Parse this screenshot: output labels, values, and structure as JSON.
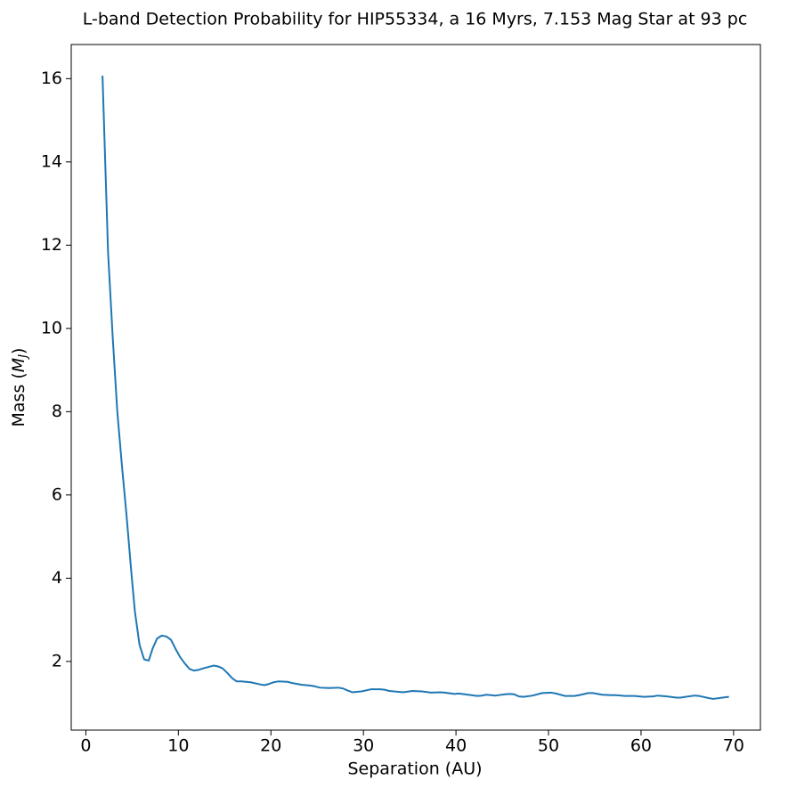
{
  "chart_data": {
    "type": "line",
    "title": "L-band Detection Probability for HIP55334, a 16 Myrs, 7.153 Mag Star at 93 pc",
    "xlabel": "Separation (AU)",
    "ylabel": [
      "Mass (",
      "M",
      "J",
      ")"
    ],
    "x": [
      1.8,
      2.4,
      2.9,
      3.4,
      3.9,
      4.4,
      4.9,
      5.3,
      5.8,
      6.3,
      6.8,
      7.2,
      7.7,
      8.2,
      8.7,
      9.2,
      9.7,
      10.2,
      10.7,
      11.2,
      11.7,
      12.2,
      12.8,
      13.3,
      13.8,
      14.3,
      14.8,
      15.3,
      15.8,
      16.3,
      16.8,
      17.8,
      18.8,
      19.3,
      19.8,
      20.3,
      20.8,
      21.8,
      22.3,
      23.3,
      24.3,
      24.8,
      25.3,
      26.3,
      27.3,
      27.8,
      28.3,
      28.8,
      29.8,
      30.8,
      31.8,
      32.3,
      32.8,
      33.8,
      34.3,
      35.3,
      36.3,
      37.3,
      38.3,
      38.8,
      39.8,
      40.3,
      41.3,
      42.3,
      42.8,
      43.3,
      44.3,
      45.3,
      45.8,
      46.3,
      46.8,
      47.3,
      48.3,
      49.3,
      50.3,
      50.8,
      51.8,
      52.8,
      53.3,
      54.3,
      54.8,
      55.8,
      56.8,
      57.3,
      58.3,
      59.3,
      60.3,
      61.3,
      61.8,
      62.8,
      63.8,
      64.3,
      64.8,
      65.8,
      66.3,
      67.3,
      67.8,
      68.8,
      69.5
    ],
    "series": [
      {
        "color": "#1f77b4",
        "values": [
          16.07,
          11.83,
          9.8,
          8.0,
          6.7,
          5.5,
          4.18,
          3.2,
          2.4,
          2.05,
          2.02,
          2.3,
          2.55,
          2.62,
          2.6,
          2.52,
          2.3,
          2.1,
          1.95,
          1.82,
          1.78,
          1.8,
          1.84,
          1.87,
          1.9,
          1.88,
          1.83,
          1.72,
          1.6,
          1.52,
          1.52,
          1.5,
          1.45,
          1.43,
          1.46,
          1.5,
          1.52,
          1.51,
          1.48,
          1.44,
          1.42,
          1.4,
          1.37,
          1.36,
          1.37,
          1.35,
          1.3,
          1.26,
          1.28,
          1.33,
          1.33,
          1.32,
          1.29,
          1.27,
          1.26,
          1.29,
          1.28,
          1.25,
          1.26,
          1.25,
          1.22,
          1.23,
          1.2,
          1.17,
          1.18,
          1.2,
          1.18,
          1.21,
          1.22,
          1.21,
          1.16,
          1.15,
          1.18,
          1.24,
          1.25,
          1.23,
          1.17,
          1.17,
          1.19,
          1.24,
          1.24,
          1.2,
          1.19,
          1.19,
          1.17,
          1.17,
          1.15,
          1.16,
          1.18,
          1.16,
          1.13,
          1.13,
          1.15,
          1.18,
          1.17,
          1.12,
          1.1,
          1.13,
          1.15
        ]
      }
    ],
    "xlim": [
      -1.58,
      72.9
    ],
    "xticks": [
      0,
      10,
      20,
      30,
      40,
      50,
      60,
      70
    ],
    "ylim": [
      0.35,
      16.82
    ],
    "yticks": [
      2,
      4,
      6,
      8,
      10,
      12,
      14,
      16
    ]
  }
}
